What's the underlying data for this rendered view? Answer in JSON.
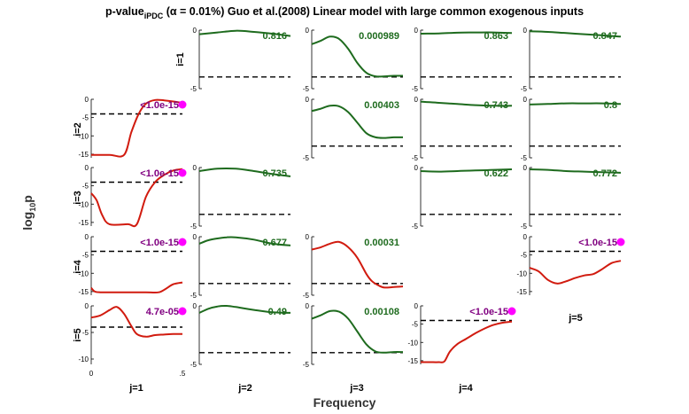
{
  "figure": {
    "title_prefix": "p-value",
    "title_subscript": "iPDC",
    "title_suffix": " (α = 0.01%) Guo et al.(2008) Linear model with large common exogenous inputs",
    "xlabel": "Frequency",
    "ylabel": "log",
    "ylabel_sub": "10",
    "ylabel_end": "p"
  },
  "colors": {
    "significant": "#d11b0f",
    "not_significant": "#1e6b1e",
    "threshold": "#000000",
    "marker": "#ff00ff",
    "label_significant": "#800080",
    "label_not_significant": "#1e6b1e"
  },
  "chart_data": {
    "type": "line",
    "x_range": [
      0,
      0.5
    ],
    "x_ticks": [
      "0",
      ".5"
    ],
    "threshold_log10p": -4,
    "row_labels": [
      "i=1",
      "i=2",
      "i=3",
      "i=4",
      "i=5"
    ],
    "col_labels": [
      "j=1",
      "j=2",
      "j=3",
      "j=4",
      "j=5"
    ],
    "cells": [
      {
        "i": 1,
        "j": 2,
        "p_label": "0.816",
        "significant": false,
        "ylim": [
          -5,
          0
        ],
        "yticks": [
          "0",
          "-5"
        ],
        "x": [
          0,
          0.1,
          0.2,
          0.3,
          0.4,
          0.5
        ],
        "y": [
          -0.35,
          -0.2,
          -0.05,
          -0.15,
          -0.3,
          -0.5
        ]
      },
      {
        "i": 1,
        "j": 3,
        "p_label": "0.000989",
        "significant": false,
        "ylim": [
          -5,
          0
        ],
        "yticks": [
          "0",
          "-5"
        ],
        "x": [
          0,
          0.05,
          0.1,
          0.15,
          0.2,
          0.25,
          0.3,
          0.35,
          0.4,
          0.45,
          0.5
        ],
        "y": [
          -1.2,
          -0.9,
          -0.55,
          -0.75,
          -1.6,
          -2.8,
          -3.65,
          -3.95,
          -3.95,
          -3.9,
          -3.9
        ]
      },
      {
        "i": 1,
        "j": 4,
        "p_label": "0.863",
        "significant": false,
        "ylim": [
          -5,
          0
        ],
        "yticks": [
          "0",
          "-5"
        ],
        "x": [
          0,
          0.1,
          0.2,
          0.3,
          0.4,
          0.5
        ],
        "y": [
          -0.3,
          -0.28,
          -0.22,
          -0.2,
          -0.2,
          -0.25
        ]
      },
      {
        "i": 1,
        "j": 5,
        "p_label": "0.847",
        "significant": false,
        "ylim": [
          -5,
          0
        ],
        "yticks": [
          "0",
          "-5"
        ],
        "x": [
          0,
          0.1,
          0.2,
          0.3,
          0.4,
          0.5
        ],
        "y": [
          -0.1,
          -0.15,
          -0.25,
          -0.35,
          -0.45,
          -0.55
        ]
      },
      {
        "i": 2,
        "j": 1,
        "p_label": "<1.0e-15",
        "significant": true,
        "marker": true,
        "ylim": [
          -16,
          0
        ],
        "yticks": [
          "0",
          "-5",
          "-10",
          "-15"
        ],
        "x": [
          0,
          0.1,
          0.18,
          0.22,
          0.26,
          0.3,
          0.35,
          0.4,
          0.45,
          0.5
        ],
        "y": [
          -15.2,
          -15.2,
          -15.2,
          -9,
          -4,
          -1.2,
          -0.2,
          -0.3,
          -0.6,
          -1.0
        ]
      },
      {
        "i": 2,
        "j": 3,
        "p_label": "0.00403",
        "significant": false,
        "ylim": [
          -5,
          0
        ],
        "yticks": [
          "0",
          "-5"
        ],
        "x": [
          0,
          0.05,
          0.1,
          0.15,
          0.2,
          0.25,
          0.3,
          0.35,
          0.4,
          0.45,
          0.5
        ],
        "y": [
          -1.0,
          -0.8,
          -0.55,
          -0.6,
          -1.1,
          -2.0,
          -2.9,
          -3.25,
          -3.3,
          -3.25,
          -3.25
        ]
      },
      {
        "i": 2,
        "j": 4,
        "p_label": "0.743",
        "significant": false,
        "ylim": [
          -5,
          0
        ],
        "yticks": [
          "0",
          "-5"
        ],
        "x": [
          0,
          0.1,
          0.2,
          0.3,
          0.4,
          0.5
        ],
        "y": [
          -0.2,
          -0.3,
          -0.4,
          -0.5,
          -0.55,
          -0.55
        ]
      },
      {
        "i": 2,
        "j": 5,
        "p_label": "0.8",
        "significant": false,
        "ylim": [
          -5,
          0
        ],
        "yticks": [
          "0",
          "-5"
        ],
        "x": [
          0,
          0.1,
          0.2,
          0.3,
          0.4,
          0.5
        ],
        "y": [
          -0.45,
          -0.4,
          -0.35,
          -0.35,
          -0.35,
          -0.4
        ]
      },
      {
        "i": 3,
        "j": 1,
        "p_label": "<1.0e-15",
        "significant": true,
        "marker": true,
        "ylim": [
          -16,
          0
        ],
        "yticks": [
          "0",
          "-5",
          "-10",
          "-15"
        ],
        "x": [
          0,
          0.03,
          0.06,
          0.1,
          0.2,
          0.25,
          0.3,
          0.35,
          0.4,
          0.45,
          0.5
        ],
        "y": [
          -7,
          -9,
          -13,
          -15.5,
          -15.5,
          -15.5,
          -8,
          -4,
          -2,
          -0.8,
          -0.4
        ]
      },
      {
        "i": 3,
        "j": 2,
        "p_label": "0.735",
        "significant": false,
        "ylim": [
          -5,
          0
        ],
        "yticks": [
          "0",
          "-5"
        ],
        "x": [
          0,
          0.1,
          0.2,
          0.3,
          0.4,
          0.5
        ],
        "y": [
          -0.3,
          -0.1,
          -0.1,
          -0.3,
          -0.55,
          -0.75
        ]
      },
      {
        "i": 3,
        "j": 4,
        "p_label": "0.622",
        "significant": false,
        "ylim": [
          -5,
          0
        ],
        "yticks": [
          "0",
          "-5"
        ],
        "x": [
          0,
          0.1,
          0.2,
          0.3,
          0.4,
          0.5
        ],
        "y": [
          -0.3,
          -0.35,
          -0.3,
          -0.25,
          -0.2,
          -0.15
        ]
      },
      {
        "i": 3,
        "j": 5,
        "p_label": "0.772",
        "significant": false,
        "ylim": [
          -5,
          0
        ],
        "yticks": [
          "0",
          "-5"
        ],
        "x": [
          0,
          0.1,
          0.2,
          0.3,
          0.4,
          0.5
        ],
        "y": [
          -0.15,
          -0.2,
          -0.3,
          -0.35,
          -0.4,
          -0.45
        ]
      },
      {
        "i": 4,
        "j": 1,
        "p_label": "<1.0e-15",
        "significant": true,
        "marker": true,
        "ylim": [
          -16,
          0
        ],
        "yticks": [
          "0",
          "-5",
          "-10",
          "-15"
        ],
        "x": [
          0,
          0.02,
          0.05,
          0.1,
          0.2,
          0.3,
          0.37,
          0.41,
          0.45,
          0.5
        ],
        "y": [
          -14,
          -15,
          -15.2,
          -15.2,
          -15.2,
          -15.2,
          -15.2,
          -14.2,
          -13,
          -12.5
        ]
      },
      {
        "i": 4,
        "j": 2,
        "p_label": "0.677",
        "significant": false,
        "ylim": [
          -5,
          0
        ],
        "yticks": [
          "0",
          "-5"
        ],
        "x": [
          0,
          0.05,
          0.1,
          0.15,
          0.2,
          0.3,
          0.4,
          0.5
        ],
        "y": [
          -0.6,
          -0.3,
          -0.15,
          -0.05,
          -0.05,
          -0.25,
          -0.6,
          -0.75
        ]
      },
      {
        "i": 4,
        "j": 3,
        "p_label": "0.00031",
        "significant": true,
        "ylim": [
          -5,
          0
        ],
        "yticks": [
          "0",
          "-5"
        ],
        "x": [
          0,
          0.05,
          0.1,
          0.15,
          0.2,
          0.25,
          0.3,
          0.33,
          0.37,
          0.4,
          0.45,
          0.5
        ],
        "y": [
          -1.1,
          -0.9,
          -0.6,
          -0.45,
          -0.9,
          -1.8,
          -3.2,
          -3.8,
          -4.2,
          -4.35,
          -4.3,
          -4.25
        ]
      },
      {
        "i": 4,
        "j": 5,
        "p_label": "<1.0e-15",
        "significant": true,
        "marker": true,
        "ylim": [
          -16,
          0
        ],
        "yticks": [
          "0",
          "-5",
          "-10",
          "-15"
        ],
        "x": [
          0,
          0.05,
          0.1,
          0.15,
          0.2,
          0.25,
          0.3,
          0.35,
          0.4,
          0.45,
          0.5
        ],
        "y": [
          -8.5,
          -9.5,
          -11.8,
          -12.8,
          -12.2,
          -11.3,
          -10.6,
          -10.2,
          -8.8,
          -7.2,
          -6.6
        ]
      },
      {
        "i": 5,
        "j": 1,
        "p_label": "4.7e-05",
        "significant": true,
        "marker": true,
        "ylim": [
          -11,
          0
        ],
        "yticks": [
          "0",
          "-5",
          "-10"
        ],
        "x": [
          0,
          0.05,
          0.1,
          0.14,
          0.18,
          0.22,
          0.25,
          0.3,
          0.35,
          0.4,
          0.45,
          0.5
        ],
        "y": [
          -2.2,
          -1.8,
          -0.8,
          -0.2,
          -1.5,
          -3.8,
          -5.3,
          -5.8,
          -5.5,
          -5.4,
          -5.3,
          -5.3
        ]
      },
      {
        "i": 5,
        "j": 2,
        "p_label": "0.49",
        "significant": false,
        "ylim": [
          -5,
          0
        ],
        "yticks": [
          "0",
          "-5"
        ],
        "x": [
          0,
          0.05,
          0.1,
          0.15,
          0.2,
          0.3,
          0.4,
          0.5
        ],
        "y": [
          -0.6,
          -0.25,
          -0.05,
          0,
          -0.1,
          -0.35,
          -0.55,
          -0.6
        ]
      },
      {
        "i": 5,
        "j": 3,
        "p_label": "0.00108",
        "significant": false,
        "ylim": [
          -5,
          0
        ],
        "yticks": [
          "0",
          "-5"
        ],
        "x": [
          0,
          0.05,
          0.1,
          0.15,
          0.2,
          0.25,
          0.3,
          0.35,
          0.4,
          0.45,
          0.5
        ],
        "y": [
          -1.1,
          -0.8,
          -0.45,
          -0.5,
          -1.1,
          -2.2,
          -3.3,
          -3.9,
          -4.0,
          -3.95,
          -3.95
        ]
      },
      {
        "i": 5,
        "j": 4,
        "p_label": "<1.0e-15",
        "significant": true,
        "marker": true,
        "ylim": [
          -16,
          0
        ],
        "yticks": [
          "0",
          "-5",
          "-10",
          "-15"
        ],
        "x": [
          0,
          0.05,
          0.1,
          0.13,
          0.16,
          0.2,
          0.25,
          0.3,
          0.35,
          0.4,
          0.45,
          0.5
        ],
        "y": [
          -15.4,
          -15.4,
          -15.4,
          -15.2,
          -12.5,
          -10.5,
          -9,
          -7.5,
          -6.2,
          -5.2,
          -4.6,
          -4.3
        ]
      }
    ]
  }
}
